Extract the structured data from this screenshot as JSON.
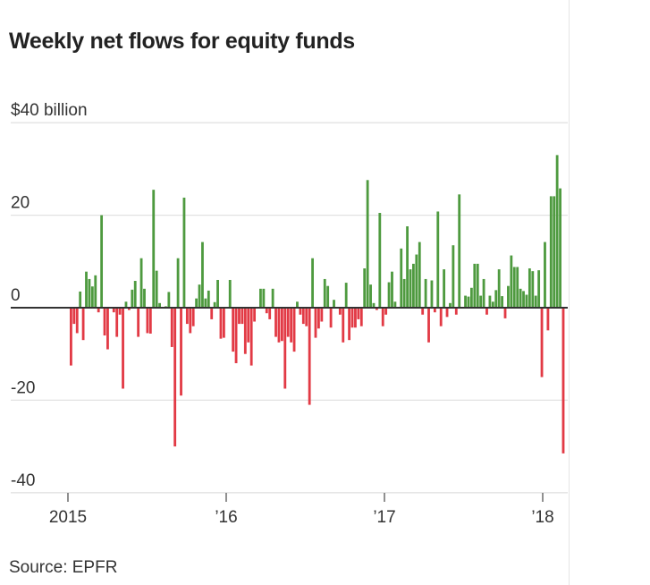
{
  "title": "Weekly net flows for equity funds",
  "source": "Source: EPFR",
  "chart_data": {
    "type": "bar",
    "title": "Weekly net flows for equity funds",
    "ylabel": "$ billion",
    "ylim": [
      -40,
      40
    ],
    "y_ticks": [
      {
        "value": 40,
        "label": "$40 billion"
      },
      {
        "value": 20,
        "label": "20"
      },
      {
        "value": 0,
        "label": "0"
      },
      {
        "value": -20,
        "label": "-20"
      },
      {
        "value": -40,
        "label": "-40"
      }
    ],
    "x_ticks": [
      {
        "year": 2015,
        "label": "2015"
      },
      {
        "year": 2016,
        "label": "’16"
      },
      {
        "year": 2017,
        "label": "’17"
      },
      {
        "year": 2018,
        "label": "’18"
      }
    ],
    "x_range": [
      2015,
      2018.13
    ],
    "grid": true,
    "colors": {
      "positive": "#4e9a3f",
      "negative": "#e23a45",
      "grid": "#e2e2e2",
      "axis": "#333333"
    },
    "values": [
      -12.5,
      -3.5,
      -5.5,
      3.5,
      -7,
      7.8,
      6.2,
      4.6,
      7,
      -1,
      20,
      -6,
      -9,
      0,
      -1,
      -6.3,
      -1.5,
      -17.5,
      1.3,
      -0.5,
      3.9,
      5.8,
      -6.3,
      10.7,
      4.1,
      -5.5,
      -5.6,
      25.5,
      8,
      1,
      0,
      0.3,
      3.4,
      -8.5,
      -30,
      10.7,
      -19,
      23.8,
      -3.5,
      -5.5,
      -4,
      2,
      5,
      14.2,
      2,
      3.7,
      -2.5,
      1.2,
      6,
      -6.7,
      -6.5,
      0,
      6,
      -9.5,
      -12,
      -3.5,
      -3.5,
      -10,
      -7.5,
      -12.5,
      -3,
      0,
      4.1,
      4.1,
      -1.2,
      -2.5,
      4.1,
      -6.3,
      -7.5,
      -7.2,
      -17.5,
      -6.3,
      -7.5,
      -9.5,
      1.3,
      -1.5,
      -3.5,
      -4,
      -21,
      10.7,
      -6.5,
      -4.5,
      -3,
      6.2,
      4.7,
      -4.3,
      1.7,
      0,
      -1.5,
      -7.5,
      5.4,
      -7,
      -4.3,
      -4.3,
      -2.5,
      -4,
      8.5,
      27.6,
      5,
      1,
      -0.5,
      20.5,
      -4,
      -1.5,
      5.5,
      7.8,
      1.3,
      0,
      12.8,
      6.2,
      17.6,
      8.3,
      9.5,
      11.5,
      14.2,
      -1.5,
      6.2,
      -7.5,
      5.9,
      -1,
      20.8,
      -4,
      8.3,
      -2,
      1,
      13.5,
      -1.5,
      24.5,
      0,
      2.6,
      2.4,
      4.3,
      9.5,
      9.5,
      2.6,
      6.2,
      -1.5,
      2.6,
      1.3,
      3.8,
      8.3,
      2.5,
      -2.3,
      4.7,
      11.3,
      8.8,
      8.8,
      4.1,
      3.6,
      2.8,
      8.5,
      7.9,
      2.6,
      8.1,
      -15,
      14.2,
      -4.9,
      24.1,
      24.1,
      33,
      25.8,
      -31.5
    ]
  }
}
